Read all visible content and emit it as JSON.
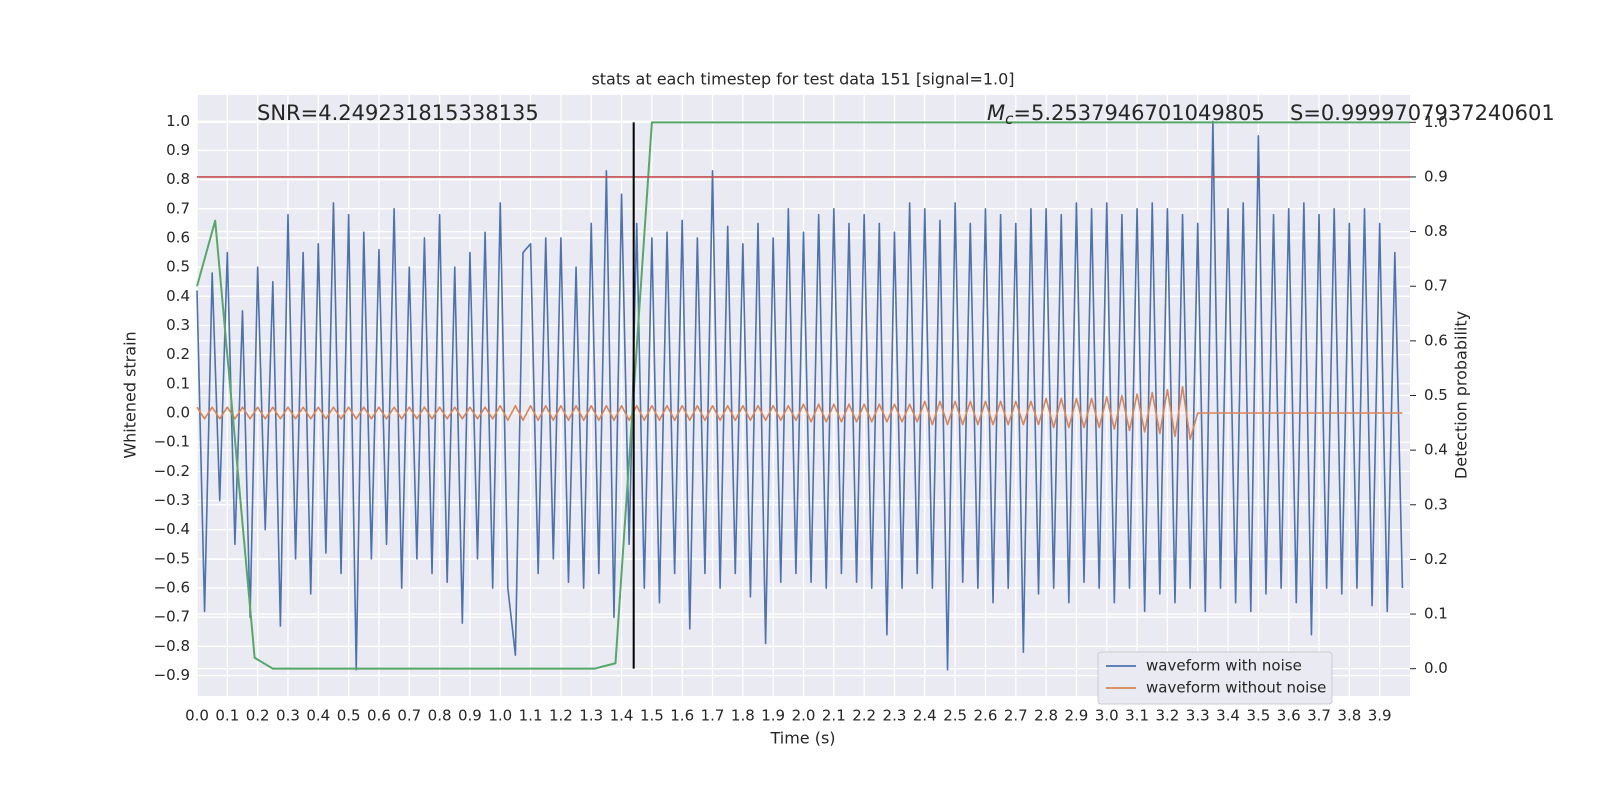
{
  "chart_data": {
    "type": "line",
    "title": "stats at each timestep for test data 151 [signal=1.0]",
    "xlabel": "Time (s)",
    "ylabel": "Whitened strain",
    "y2label": "Detection probability",
    "annotations": {
      "snr": "SNR=4.249231815338135",
      "mass_symbol": "M",
      "mass_subscript": "c",
      "mass_text": "=5.2537946701049805",
      "score": "S=0.9999707937240601"
    },
    "grid": true,
    "legend": "lower right",
    "background": "#eaeaf2",
    "xlim": [
      0,
      4.0
    ],
    "ylim": [
      -0.97,
      1.09
    ],
    "y2lim": [
      -0.05,
      1.05
    ],
    "xticks": [
      {
        "value": 0,
        "label": "0.0"
      },
      {
        "value": 0.1,
        "label": "0.1"
      },
      {
        "value": 0.2,
        "label": "0.2"
      },
      {
        "value": 0.3,
        "label": "0.3"
      },
      {
        "value": 0.4,
        "label": "0.4"
      },
      {
        "value": 0.5,
        "label": "0.5"
      },
      {
        "value": 0.6,
        "label": "0.6"
      },
      {
        "value": 0.7,
        "label": "0.7"
      },
      {
        "value": 0.8,
        "label": "0.8"
      },
      {
        "value": 0.9,
        "label": "0.9"
      },
      {
        "value": 1,
        "label": "1.0"
      },
      {
        "value": 1.1,
        "label": "1.1"
      },
      {
        "value": 1.2,
        "label": "1.2"
      },
      {
        "value": 1.3,
        "label": "1.3"
      },
      {
        "value": 1.4,
        "label": "1.4"
      },
      {
        "value": 1.5,
        "label": "1.5"
      },
      {
        "value": 1.6,
        "label": "1.6"
      },
      {
        "value": 1.7,
        "label": "1.7"
      },
      {
        "value": 1.8,
        "label": "1.8"
      },
      {
        "value": 1.9,
        "label": "1.9"
      },
      {
        "value": 2,
        "label": "2.0"
      },
      {
        "value": 2.1,
        "label": "2.1"
      },
      {
        "value": 2.2,
        "label": "2.2"
      },
      {
        "value": 2.3,
        "label": "2.3"
      },
      {
        "value": 2.4,
        "label": "2.4"
      },
      {
        "value": 2.5,
        "label": "2.5"
      },
      {
        "value": 2.6,
        "label": "2.6"
      },
      {
        "value": 2.7,
        "label": "2.7"
      },
      {
        "value": 2.8,
        "label": "2.8"
      },
      {
        "value": 2.9,
        "label": "2.9"
      },
      {
        "value": 3,
        "label": "3.0"
      },
      {
        "value": 3.1,
        "label": "3.1"
      },
      {
        "value": 3.2,
        "label": "3.2"
      },
      {
        "value": 3.3,
        "label": "3.3"
      },
      {
        "value": 3.4,
        "label": "3.4"
      },
      {
        "value": 3.5,
        "label": "3.5"
      },
      {
        "value": 3.6,
        "label": "3.6"
      },
      {
        "value": 3.7,
        "label": "3.7"
      },
      {
        "value": 3.8,
        "label": "3.8"
      },
      {
        "value": 3.9,
        "label": "3.9"
      }
    ],
    "yticks": [
      {
        "value": -0.9,
        "label": "−0.9"
      },
      {
        "value": -0.8,
        "label": "−0.8"
      },
      {
        "value": -0.7,
        "label": "−0.7"
      },
      {
        "value": -0.6,
        "label": "−0.6"
      },
      {
        "value": -0.5,
        "label": "−0.5"
      },
      {
        "value": -0.4,
        "label": "−0.4"
      },
      {
        "value": -0.3,
        "label": "−0.3"
      },
      {
        "value": -0.2,
        "label": "−0.2"
      },
      {
        "value": -0.1,
        "label": "−0.1"
      },
      {
        "value": 0,
        "label": "0.0"
      },
      {
        "value": 0.1,
        "label": "0.1"
      },
      {
        "value": 0.2,
        "label": "0.2"
      },
      {
        "value": 0.3,
        "label": "0.3"
      },
      {
        "value": 0.4,
        "label": "0.4"
      },
      {
        "value": 0.5,
        "label": "0.5"
      },
      {
        "value": 0.6,
        "label": "0.6"
      },
      {
        "value": 0.7,
        "label": "0.7"
      },
      {
        "value": 0.8,
        "label": "0.8"
      },
      {
        "value": 0.9,
        "label": "0.9"
      },
      {
        "value": 1,
        "label": "1.0"
      }
    ],
    "y2ticks": [
      {
        "value": 0,
        "label": "0.0"
      },
      {
        "value": 0.1,
        "label": "0.1"
      },
      {
        "value": 0.2,
        "label": "0.2"
      },
      {
        "value": 0.3,
        "label": "0.3"
      },
      {
        "value": 0.4,
        "label": "0.4"
      },
      {
        "value": 0.5,
        "label": "0.5"
      },
      {
        "value": 0.6,
        "label": "0.6"
      },
      {
        "value": 0.7,
        "label": "0.7"
      },
      {
        "value": 0.8,
        "label": "0.8"
      },
      {
        "value": 0.9,
        "label": "0.9"
      },
      {
        "value": 1,
        "label": "1.0"
      }
    ],
    "x": [
      0,
      0.025,
      0.05,
      0.075,
      0.1,
      0.125,
      0.15,
      0.175,
      0.2,
      0.225,
      0.25,
      0.275,
      0.3,
      0.325,
      0.35,
      0.375,
      0.4,
      0.425,
      0.45,
      0.475,
      0.5,
      0.525,
      0.55,
      0.575,
      0.6,
      0.625,
      0.65,
      0.675,
      0.7,
      0.725,
      0.75,
      0.775,
      0.8,
      0.825,
      0.85,
      0.875,
      0.9,
      0.925,
      0.95,
      0.975,
      1,
      1.025,
      1.05,
      1.075,
      1.1,
      1.125,
      1.15,
      1.175,
      1.2,
      1.225,
      1.25,
      1.275,
      1.3,
      1.325,
      1.35,
      1.375,
      1.4,
      1.425,
      1.45,
      1.475,
      1.5,
      1.525,
      1.55,
      1.575,
      1.6,
      1.625,
      1.65,
      1.675,
      1.7,
      1.725,
      1.75,
      1.775,
      1.8,
      1.825,
      1.85,
      1.875,
      1.9,
      1.925,
      1.95,
      1.975,
      2,
      2.025,
      2.05,
      2.075,
      2.1,
      2.125,
      2.15,
      2.175,
      2.2,
      2.225,
      2.25,
      2.275,
      2.3,
      2.325,
      2.35,
      2.375,
      2.4,
      2.425,
      2.45,
      2.475,
      2.5,
      2.525,
      2.55,
      2.575,
      2.6,
      2.625,
      2.65,
      2.675,
      2.7,
      2.725,
      2.75,
      2.775,
      2.8,
      2.825,
      2.85,
      2.875,
      2.9,
      2.925,
      2.95,
      2.975,
      3,
      3.025,
      3.05,
      3.075,
      3.1,
      3.125,
      3.15,
      3.175,
      3.2,
      3.225,
      3.25,
      3.275,
      3.3,
      3.325,
      3.35,
      3.375,
      3.4,
      3.425,
      3.45,
      3.475,
      3.5,
      3.525,
      3.55,
      3.575,
      3.6,
      3.625,
      3.65,
      3.675,
      3.7,
      3.725,
      3.75,
      3.775,
      3.8,
      3.825,
      3.85,
      3.875,
      3.9,
      3.925,
      3.95,
      3.975
    ],
    "series": [
      {
        "name": "waveform with noise",
        "color": "#4c72b0",
        "values": [
          0.42,
          -0.68,
          0.48,
          -0.3,
          0.55,
          -0.45,
          0.35,
          -0.7,
          0.5,
          -0.4,
          0.45,
          -0.73,
          0.68,
          -0.5,
          0.55,
          -0.62,
          0.58,
          -0.48,
          0.72,
          -0.55,
          0.68,
          -0.88,
          0.62,
          -0.5,
          0.56,
          -0.45,
          0.7,
          -0.6,
          0.5,
          -0.5,
          0.6,
          -0.55,
          0.68,
          -0.58,
          0.5,
          -0.72,
          0.55,
          -0.5,
          0.62,
          -0.6,
          0.72,
          -0.6,
          -0.83,
          0.55,
          0.58,
          -0.55,
          0.6,
          -0.5,
          0.6,
          -0.58,
          0.5,
          -0.6,
          0.65,
          -0.55,
          0.83,
          -0.7,
          0.75,
          -0.45,
          0.65,
          -0.6,
          0.6,
          -0.65,
          0.62,
          -0.55,
          0.66,
          -0.74,
          0.6,
          -0.55,
          0.83,
          -0.6,
          0.64,
          -0.55,
          0.58,
          -0.63,
          0.65,
          -0.79,
          0.6,
          -0.58,
          0.7,
          -0.55,
          0.62,
          -0.58,
          0.68,
          -0.6,
          0.7,
          -0.55,
          0.65,
          -0.58,
          0.68,
          -0.6,
          0.65,
          -0.76,
          0.62,
          -0.6,
          0.72,
          -0.55,
          0.7,
          -0.6,
          0.66,
          -0.88,
          0.72,
          -0.58,
          0.65,
          -0.6,
          0.7,
          -0.65,
          0.68,
          -0.6,
          0.65,
          -0.82,
          0.7,
          -0.62,
          0.7,
          -0.6,
          0.68,
          -0.65,
          0.72,
          -0.58,
          0.7,
          -0.6,
          0.72,
          -0.65,
          0.68,
          -0.6,
          0.7,
          -0.68,
          0.72,
          -0.62,
          0.7,
          -0.65,
          0.68,
          -0.6,
          0.65,
          -0.68,
          1.0,
          -0.6,
          0.7,
          -0.65,
          0.72,
          -0.68,
          0.95,
          -0.62,
          0.68,
          -0.6,
          0.7,
          -0.65,
          0.72,
          -0.76,
          0.68,
          -0.6,
          0.7,
          -0.62,
          0.65,
          -0.6,
          0.7,
          -0.66,
          0.65,
          -0.68,
          0.55,
          -0.6
        ]
      },
      {
        "name": "waveform without noise",
        "color": "#dd8452",
        "values": [
          0.02,
          -0.02,
          0.02,
          -0.02,
          0.02,
          -0.02,
          0.02,
          -0.02,
          0.02,
          -0.02,
          0.02,
          -0.02,
          0.02,
          -0.02,
          0.02,
          -0.02,
          0.02,
          -0.02,
          0.02,
          -0.02,
          0.02,
          -0.02,
          0.02,
          -0.02,
          0.02,
          -0.02,
          0.02,
          -0.02,
          0.02,
          -0.02,
          0.02,
          -0.02,
          0.02,
          -0.02,
          0.02,
          -0.02,
          0.02,
          -0.02,
          0.02,
          -0.02,
          0.025,
          -0.025,
          0.025,
          -0.025,
          0.025,
          -0.025,
          0.025,
          -0.025,
          0.025,
          -0.025,
          0.025,
          -0.025,
          0.025,
          -0.025,
          0.025,
          -0.025,
          0.025,
          -0.025,
          0.025,
          -0.025,
          0.025,
          -0.025,
          0.025,
          -0.025,
          0.025,
          -0.025,
          0.025,
          -0.025,
          0.025,
          -0.025,
          0.025,
          -0.025,
          0.025,
          -0.025,
          0.025,
          -0.025,
          0.025,
          -0.025,
          0.025,
          -0.025,
          0.03,
          -0.03,
          0.03,
          -0.03,
          0.03,
          -0.03,
          0.03,
          -0.03,
          0.03,
          -0.03,
          0.03,
          -0.03,
          0.03,
          -0.03,
          0.03,
          -0.03,
          0.04,
          -0.04,
          0.04,
          -0.04,
          0.04,
          -0.04,
          0.04,
          -0.04,
          0.04,
          -0.04,
          0.04,
          -0.04,
          0.04,
          -0.04,
          0.04,
          -0.04,
          0.05,
          -0.05,
          0.05,
          -0.05,
          0.05,
          -0.05,
          0.05,
          -0.05,
          0.055,
          -0.055,
          0.06,
          -0.06,
          0.065,
          -0.065,
          0.07,
          -0.07,
          0.08,
          -0.08,
          0.09,
          -0.09,
          0,
          0,
          0,
          0,
          0,
          0,
          0,
          0,
          0,
          0,
          0,
          0,
          0,
          0,
          0,
          0,
          0,
          0,
          0,
          0,
          0,
          0,
          0,
          0,
          0,
          0,
          0,
          0
        ]
      }
    ],
    "detection": {
      "axis": "y2",
      "color": "#55a868",
      "x": [
        0,
        0.06,
        0.19,
        0.25,
        1.31,
        1.38,
        1.5,
        4.0
      ],
      "values": [
        0.7,
        0.82,
        0.02,
        0.0,
        0.0,
        0.01,
        1.0,
        1.0
      ]
    },
    "threshold": {
      "axis": "y2",
      "value": 0.9,
      "color": "#c44e52"
    },
    "marker_time": {
      "value": 1.44,
      "color": "#000000"
    }
  }
}
